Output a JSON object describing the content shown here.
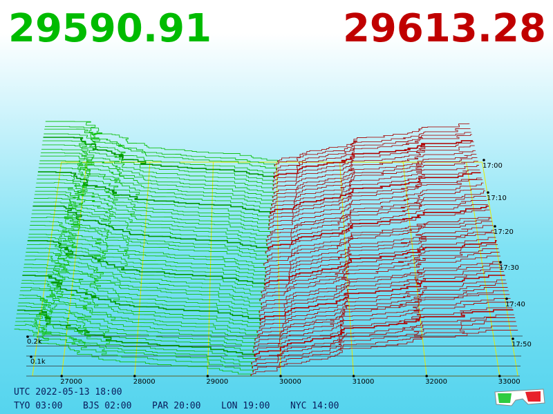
{
  "header": {
    "bid": "29590.91",
    "ask": "29613.28"
  },
  "axes": {
    "price_ticks": [
      "27000",
      "28000",
      "29000",
      "30000",
      "31000",
      "32000",
      "33000"
    ],
    "time_ticks": [
      "17:00",
      "17:10",
      "17:20",
      "17:30",
      "17:40",
      "17:50"
    ],
    "depth_ticks": [
      "0.2k",
      "0.1k"
    ]
  },
  "footer": {
    "utc": "UTC 2022-05-13 18:00",
    "zones": [
      "TYO 03:00",
      "BJS 02:00",
      "PAR 20:00",
      "LON 19:00",
      "NYC 14:00"
    ]
  }
}
